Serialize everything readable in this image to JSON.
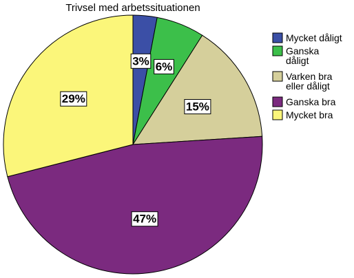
{
  "chart_data": {
    "type": "pie",
    "title": "Trivsel med arbetssituationen",
    "slices": [
      {
        "label": [
          "Mycket dåligt"
        ],
        "value": 3,
        "value_label": "3%",
        "color": "#3B4FA6"
      },
      {
        "label": [
          "Ganska",
          "dåligt"
        ],
        "value": 6,
        "value_label": "6%",
        "color": "#3CBF4A"
      },
      {
        "label": [
          "Varken bra",
          "eller dåligt"
        ],
        "value": 15,
        "value_label": "15%",
        "color": "#D5CF9B"
      },
      {
        "label": [
          "Ganska bra"
        ],
        "value": 47,
        "value_label": "47%",
        "color": "#7B2A7F"
      },
      {
        "label": [
          "Mycket bra"
        ],
        "value": 29,
        "value_label": "29%",
        "color": "#FBF67A"
      }
    ],
    "legend_position": "right"
  }
}
